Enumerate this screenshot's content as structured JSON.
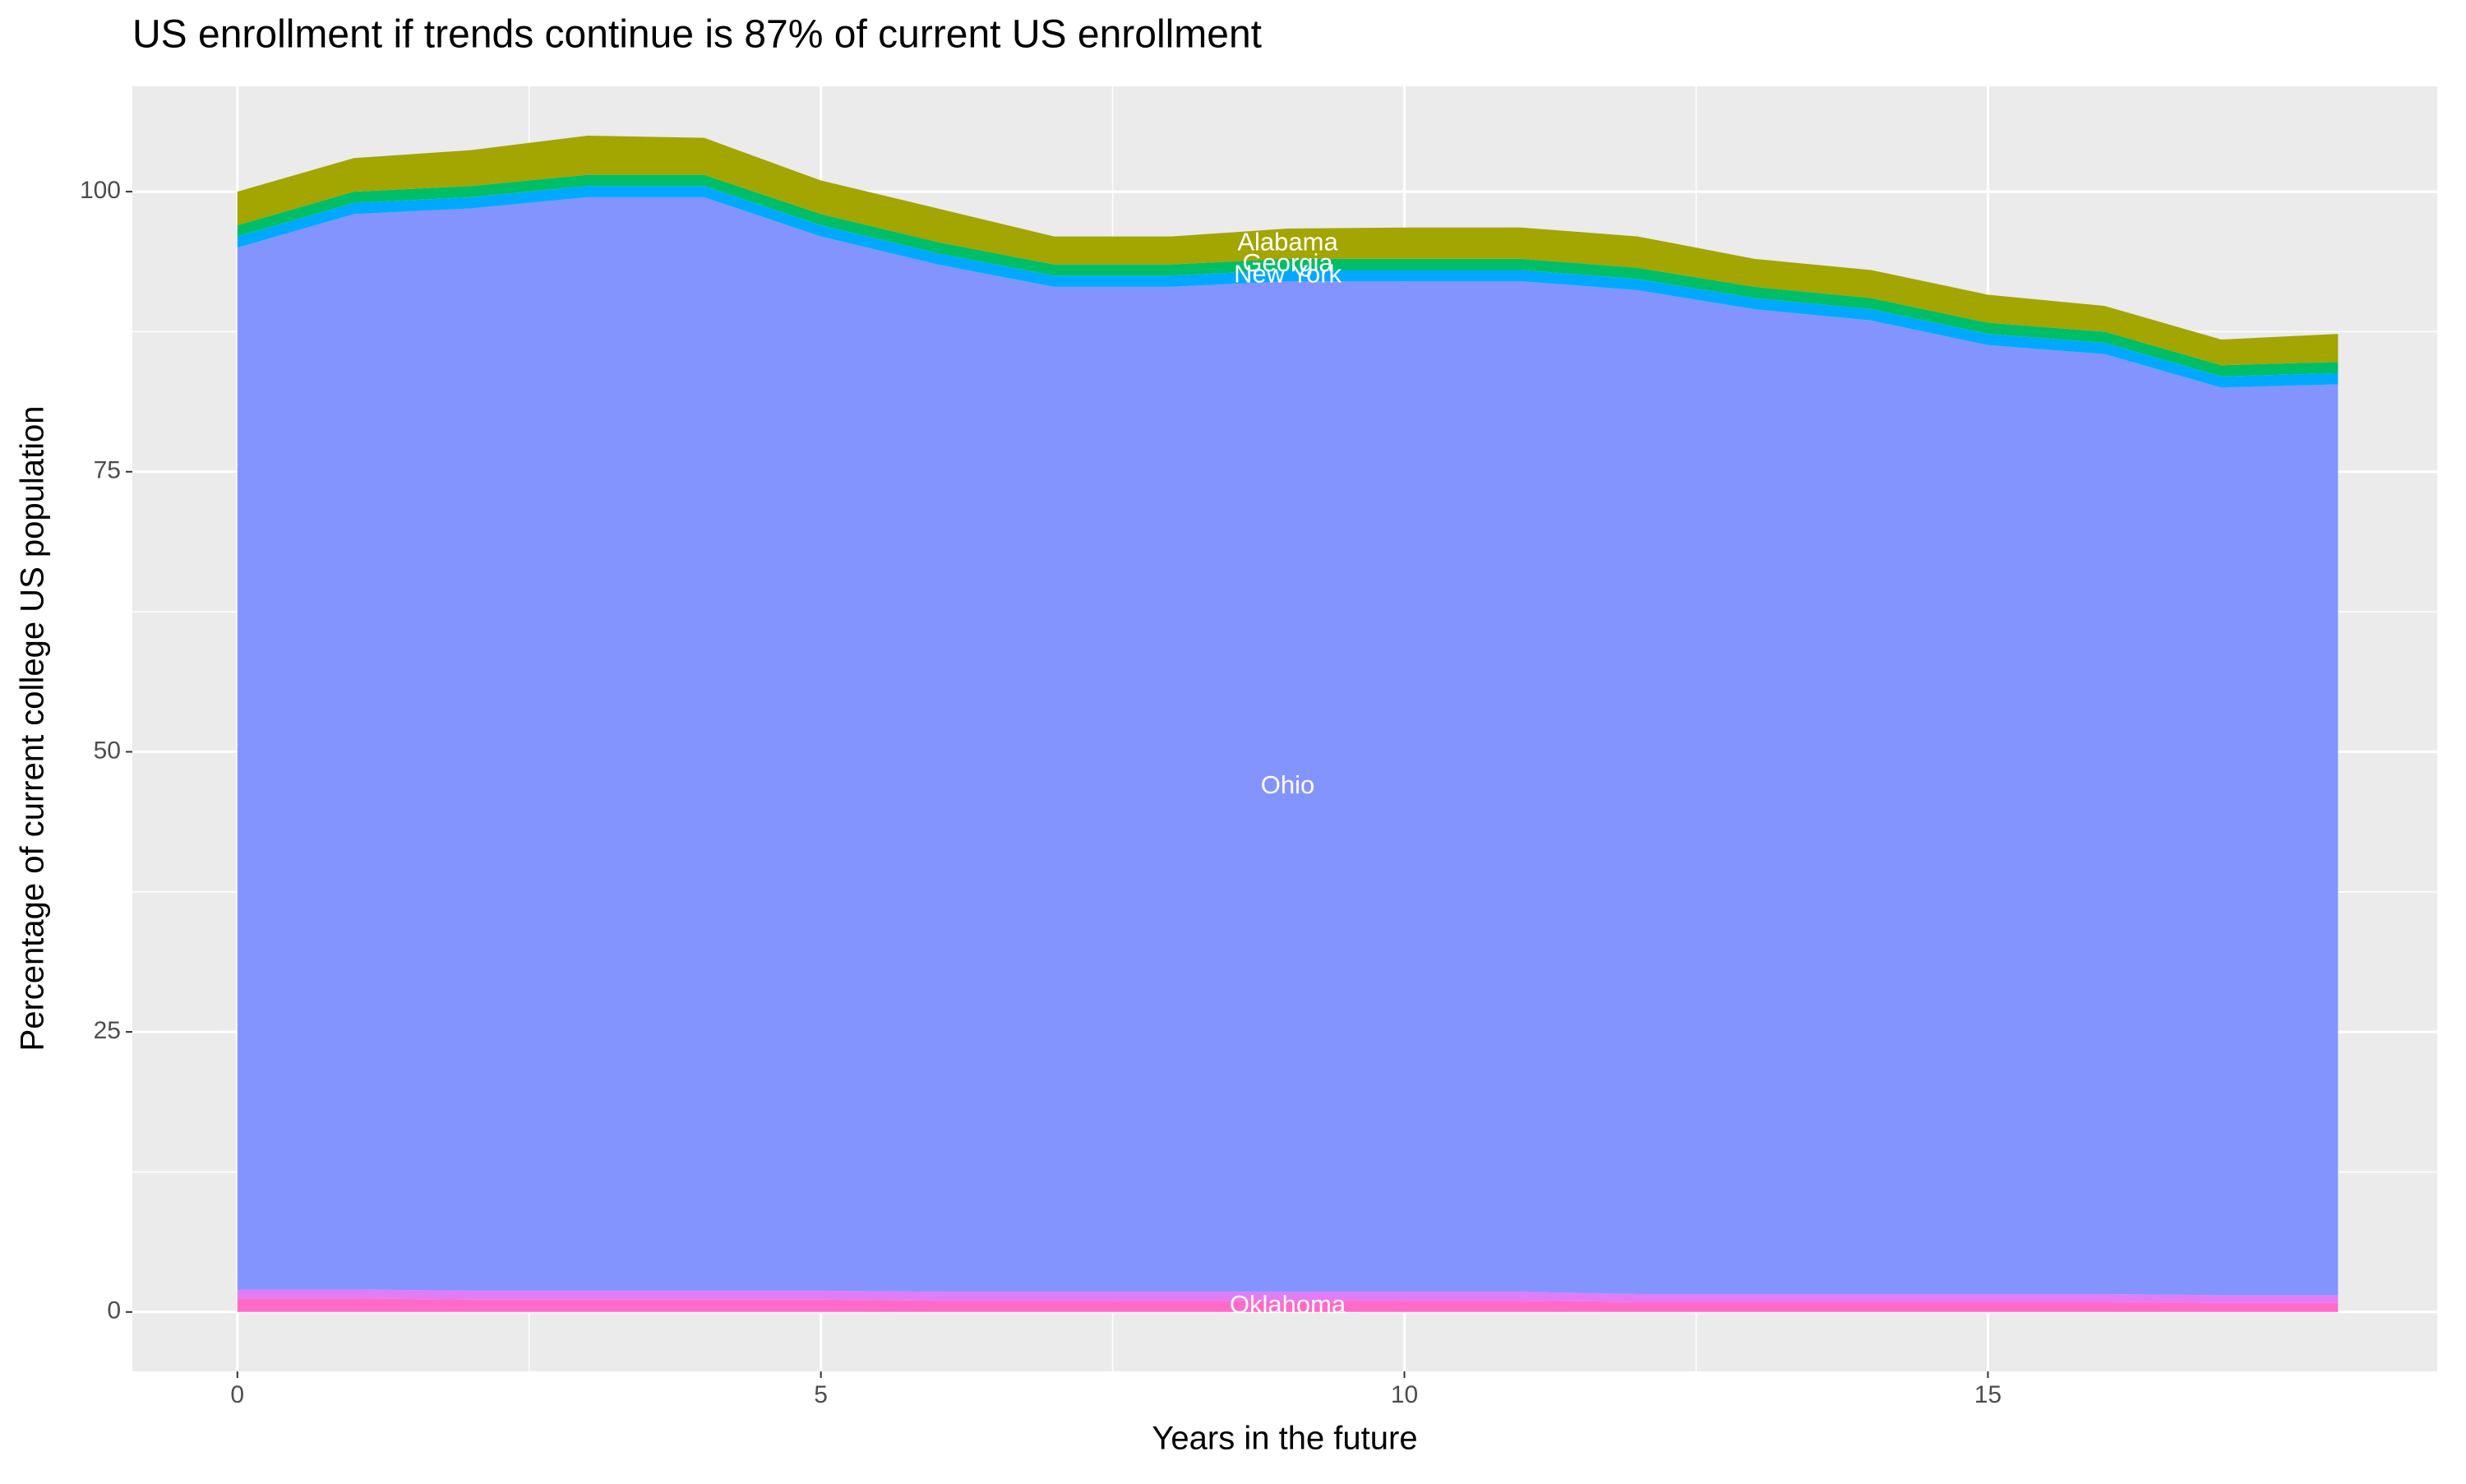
{
  "chart_data": {
    "type": "stacked_area",
    "title": "US enrollment if trends continue is 87% of current US enrollment",
    "x_label": "Years in the future",
    "y_label": "Percentage of current college US population",
    "x": [
      0,
      1,
      2,
      3,
      4,
      5,
      6,
      7,
      8,
      9,
      10,
      11,
      12,
      13,
      14,
      15,
      16,
      17,
      18
    ],
    "series": [
      {
        "name": "Oklahoma",
        "color": "#ff6ac8",
        "values": [
          1.2,
          1.2,
          1.1,
          1.1,
          1.1,
          1.1,
          1,
          1,
          1,
          1,
          1,
          1,
          0.9,
          0.9,
          0.9,
          0.9,
          0.9,
          0.8,
          0.8
        ]
      },
      {
        "color": "#e27cf5",
        "values": [
          0.8,
          0.8,
          0.8,
          0.8,
          0.8,
          0.8,
          0.8,
          0.8,
          0.8,
          0.8,
          0.8,
          0.8,
          0.7,
          0.7,
          0.7,
          0.7,
          0.7,
          0.7,
          0.7
        ]
      },
      {
        "name": "Ohio",
        "color": "#8494ff",
        "values": [
          93,
          96,
          96.6,
          97.6,
          97.6,
          94.1,
          91.7,
          89.7,
          89.7,
          90.2,
          90.2,
          90.2,
          89.6,
          87.9,
          86.9,
          84.7,
          83.9,
          81,
          81.3
        ]
      },
      {
        "name": "New York",
        "color": "#00a9ff",
        "values": [
          1,
          1,
          1,
          1,
          1,
          1,
          1,
          1,
          1,
          1,
          1,
          1,
          1,
          1,
          1,
          1,
          1,
          1,
          1
        ]
      },
      {
        "name": "Georgia",
        "color": "#00be67",
        "values": [
          1,
          1,
          1,
          1,
          1,
          1,
          1,
          1,
          1,
          1,
          1,
          1,
          1,
          1,
          1,
          1,
          1,
          1,
          1
        ]
      },
      {
        "name": "Alabama",
        "color": "#a3a500",
        "values": [
          3,
          3,
          3.2,
          3.5,
          3.3,
          3,
          3,
          2.5,
          2.5,
          2.7,
          2.8,
          2.8,
          2.8,
          2.5,
          2.5,
          2.5,
          2.3,
          2.3,
          2.5
        ]
      }
    ],
    "label_x": 9,
    "xlim": [
      -0.9,
      18.85
    ],
    "xticks": [
      0,
      5,
      10,
      15
    ],
    "ylim": [
      -5.3,
      109.4
    ],
    "yticks": [
      0,
      25,
      50,
      75,
      100
    ],
    "grid": true
  }
}
